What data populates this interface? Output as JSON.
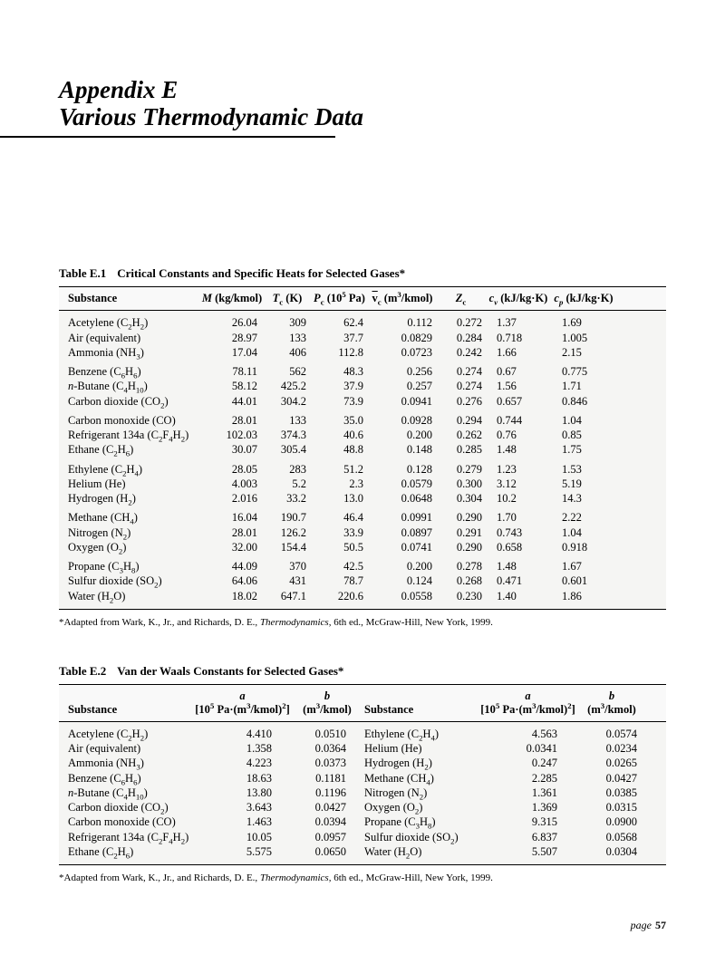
{
  "appendix": {
    "line1": "Appendix E",
    "line2": "Various Thermodynamic Data"
  },
  "tableE1": {
    "title_num": "Table E.1",
    "title_text": "Critical Constants and Specific Heats for Selected Gases*",
    "headers": [
      "Substance",
      "M (kg/kmol)",
      "Tc (K)",
      "Pc (10^5 Pa)",
      "vc (m3/kmol)",
      "Zc",
      "cv (kJ/kg·K)",
      "cp (kJ/kg·K)"
    ],
    "groups": [
      [
        {
          "name": "Acetylene (C2H2)",
          "name_html": "Acetylene (C<sub>2</sub>H<sub>2</sub>)",
          "M": "26.04",
          "Tc": "309",
          "Pc": "62.4",
          "vc": "0.112",
          "Zc": "0.272",
          "cv": "1.37",
          "cp": "1.69"
        },
        {
          "name": "Air (equivalent)",
          "name_html": "Air (equivalent)",
          "M": "28.97",
          "Tc": "133",
          "Pc": "37.7",
          "vc": "0.0829",
          "Zc": "0.284",
          "cv": "0.718",
          "cp": "1.005"
        },
        {
          "name": "Ammonia (NH3)",
          "name_html": "Ammonia (NH<sub>3</sub>)",
          "M": "17.04",
          "Tc": "406",
          "Pc": "112.8",
          "vc": "0.0723",
          "Zc": "0.242",
          "cv": "1.66",
          "cp": "2.15"
        }
      ],
      [
        {
          "name": "Benzene (C6H6)",
          "name_html": "Benzene (C<sub>6</sub>H<sub>6</sub>)",
          "M": "78.11",
          "Tc": "562",
          "Pc": "48.3",
          "vc": "0.256",
          "Zc": "0.274",
          "cv": "0.67",
          "cp": "0.775"
        },
        {
          "name": "n-Butane (C4H10)",
          "name_html": "<span class=\"ital\">n</span>-Butane (C<sub>4</sub>H<sub>10</sub>)",
          "M": "58.12",
          "Tc": "425.2",
          "Pc": "37.9",
          "vc": "0.257",
          "Zc": "0.274",
          "cv": "1.56",
          "cp": "1.71"
        },
        {
          "name": "Carbon dioxide (CO2)",
          "name_html": "Carbon dioxide (CO<sub>2</sub>)",
          "M": "44.01",
          "Tc": "304.2",
          "Pc": "73.9",
          "vc": "0.0941",
          "Zc": "0.276",
          "cv": "0.657",
          "cp": "0.846"
        }
      ],
      [
        {
          "name": "Carbon monoxide (CO)",
          "name_html": "Carbon monoxide (CO)",
          "M": "28.01",
          "Tc": "133",
          "Pc": "35.0",
          "vc": "0.0928",
          "Zc": "0.294",
          "cv": "0.744",
          "cp": "1.04"
        },
        {
          "name": "Refrigerant 134a (C2F4H2)",
          "name_html": "Refrigerant 134a (C<sub>2</sub>F<sub>4</sub>H<sub>2</sub>)",
          "M": "102.03",
          "Tc": "374.3",
          "Pc": "40.6",
          "vc": "0.200",
          "Zc": "0.262",
          "cv": "0.76",
          "cp": "0.85"
        },
        {
          "name": "Ethane (C2H6)",
          "name_html": "Ethane (C<sub>2</sub>H<sub>6</sub>)",
          "M": "30.07",
          "Tc": "305.4",
          "Pc": "48.8",
          "vc": "0.148",
          "Zc": "0.285",
          "cv": "1.48",
          "cp": "1.75"
        }
      ],
      [
        {
          "name": "Ethylene (C2H4)",
          "name_html": "Ethylene (C<sub>2</sub>H<sub>4</sub>)",
          "M": "28.05",
          "Tc": "283",
          "Pc": "51.2",
          "vc": "0.128",
          "Zc": "0.279",
          "cv": "1.23",
          "cp": "1.53"
        },
        {
          "name": "Helium (He)",
          "name_html": "Helium (He)",
          "M": "4.003",
          "Tc": "5.2",
          "Pc": "2.3",
          "vc": "0.0579",
          "Zc": "0.300",
          "cv": "3.12",
          "cp": "5.19"
        },
        {
          "name": "Hydrogen (H2)",
          "name_html": "Hydrogen (H<sub>2</sub>)",
          "M": "2.016",
          "Tc": "33.2",
          "Pc": "13.0",
          "vc": "0.0648",
          "Zc": "0.304",
          "cv": "10.2",
          "cp": "14.3"
        }
      ],
      [
        {
          "name": "Methane (CH4)",
          "name_html": "Methane (CH<sub>4</sub>)",
          "M": "16.04",
          "Tc": "190.7",
          "Pc": "46.4",
          "vc": "0.0991",
          "Zc": "0.290",
          "cv": "1.70",
          "cp": "2.22"
        },
        {
          "name": "Nitrogen (N2)",
          "name_html": "Nitrogen (N<sub>2</sub>)",
          "M": "28.01",
          "Tc": "126.2",
          "Pc": "33.9",
          "vc": "0.0897",
          "Zc": "0.291",
          "cv": "0.743",
          "cp": "1.04"
        },
        {
          "name": "Oxygen (O2)",
          "name_html": "Oxygen (O<sub>2</sub>)",
          "M": "32.00",
          "Tc": "154.4",
          "Pc": "50.5",
          "vc": "0.0741",
          "Zc": "0.290",
          "cv": "0.658",
          "cp": "0.918"
        }
      ],
      [
        {
          "name": "Propane (C3H8)",
          "name_html": "Propane (C<sub>3</sub>H<sub>8</sub>)",
          "M": "44.09",
          "Tc": "370",
          "Pc": "42.5",
          "vc": "0.200",
          "Zc": "0.278",
          "cv": "1.48",
          "cp": "1.67"
        },
        {
          "name": "Sulfur dioxide (SO2)",
          "name_html": "Sulfur dioxide (SO<sub>2</sub>)",
          "M": "64.06",
          "Tc": "431",
          "Pc": "78.7",
          "vc": "0.124",
          "Zc": "0.268",
          "cv": "0.471",
          "cp": "0.601"
        },
        {
          "name": "Water (H2O)",
          "name_html": "Water (H<sub>2</sub>O)",
          "M": "18.02",
          "Tc": "647.1",
          "Pc": "220.6",
          "vc": "0.0558",
          "Zc": "0.230",
          "cv": "1.40",
          "cp": "1.86"
        }
      ]
    ]
  },
  "tableE2": {
    "title_num": "Table E.2",
    "title_text": "Van der Waals Constants for Selected Gases*",
    "left": [
      {
        "name_html": "Acetylene (C<sub>2</sub>H<sub>2</sub>)",
        "a": "4.410",
        "b": "0.0510"
      },
      {
        "name_html": "Air (equivalent)",
        "a": "1.358",
        "b": "0.0364"
      },
      {
        "name_html": "Ammonia (NH<sub>3</sub>)",
        "a": "4.223",
        "b": "0.0373"
      },
      {
        "name_html": "Benzene (C<sub>6</sub>H<sub>6</sub>)",
        "a": "18.63",
        "b": "0.1181"
      },
      {
        "name_html": "<span class=\"ital\">n</span>-Butane (C<sub>4</sub>H<sub>10</sub>)",
        "a": "13.80",
        "b": "0.1196"
      },
      {
        "name_html": "Carbon dioxide (CO<sub>2</sub>)",
        "a": "3.643",
        "b": "0.0427"
      },
      {
        "name_html": "Carbon monoxide (CO)",
        "a": "1.463",
        "b": "0.0394"
      },
      {
        "name_html": "Refrigerant 134a (C<sub>2</sub>F<sub>4</sub>H<sub>2</sub>)",
        "a": "10.05",
        "b": "0.0957"
      },
      {
        "name_html": "Ethane (C<sub>2</sub>H<sub>6</sub>)",
        "a": "5.575",
        "b": "0.0650"
      }
    ],
    "right": [
      {
        "name_html": "Ethylene (C<sub>2</sub>H<sub>4</sub>)",
        "a": "4.563",
        "b": "0.0574"
      },
      {
        "name_html": "Helium (He)",
        "a": "0.0341",
        "b": "0.0234"
      },
      {
        "name_html": "Hydrogen (H<sub>2</sub>)",
        "a": "0.247",
        "b": "0.0265"
      },
      {
        "name_html": "Methane (CH<sub>4</sub>)",
        "a": "2.285",
        "b": "0.0427"
      },
      {
        "name_html": "Nitrogen (N<sub>2</sub>)",
        "a": "1.361",
        "b": "0.0385"
      },
      {
        "name_html": "Oxygen (O<sub>2</sub>)",
        "a": "1.369",
        "b": "0.0315"
      },
      {
        "name_html": "Propane (C<sub>3</sub>H<sub>8</sub>)",
        "a": "9.315",
        "b": "0.0900"
      },
      {
        "name_html": "Sulfur dioxide (SO<sub>2</sub>)",
        "a": "6.837",
        "b": "0.0568"
      },
      {
        "name_html": "Water (H<sub>2</sub>O)",
        "a": "5.507",
        "b": "0.0304"
      }
    ]
  },
  "footnote": {
    "prefix": "*Adapted from Wark, K., Jr., and Richards, D. E., ",
    "ital": "Thermodynamics,",
    "suffix": " 6th ed., McGraw-Hill, New York, 1999."
  },
  "page": {
    "label": "page",
    "num": "57"
  }
}
